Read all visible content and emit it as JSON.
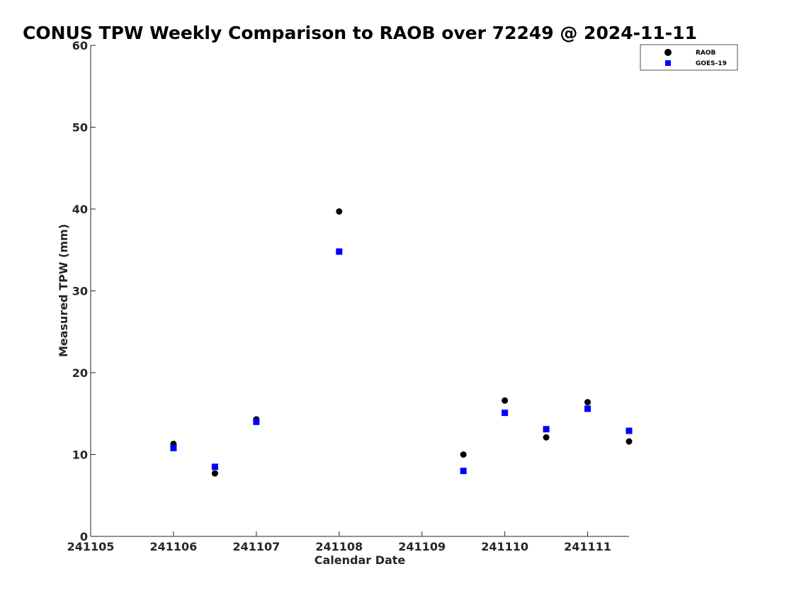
{
  "chart_data": {
    "type": "scatter",
    "title": "CONUS TPW Weekly Comparison to RAOB over 72249 @ 2024-11-11",
    "xlabel": "Calendar Date",
    "ylabel": "Measured TPW (mm)",
    "xlim": [
      0,
      6.5
    ],
    "ylim": [
      0,
      60
    ],
    "x_ticks": [
      0,
      1,
      2,
      3,
      4,
      5,
      6
    ],
    "x_tick_labels": [
      "241105",
      "241106",
      "241107",
      "241108",
      "241109",
      "241110",
      "241111"
    ],
    "y_ticks": [
      0,
      10,
      20,
      30,
      40,
      50,
      60
    ],
    "y_tick_labels": [
      "0",
      "10",
      "20",
      "30",
      "40",
      "50",
      "60"
    ],
    "grid": false,
    "legend_position": "top-right",
    "series": [
      {
        "name": "RAOB",
        "marker": "circle",
        "color": "#000000",
        "x": [
          1.0,
          1.5,
          2.0,
          3.0,
          4.5,
          5.0,
          5.5,
          6.0,
          6.5
        ],
        "y": [
          11.3,
          7.7,
          14.3,
          39.7,
          10.0,
          16.6,
          12.1,
          16.4,
          11.6
        ]
      },
      {
        "name": "GOES-19",
        "marker": "square",
        "color": "#0000ff",
        "x": [
          1.0,
          1.5,
          2.0,
          3.0,
          4.5,
          5.0,
          5.5,
          6.0,
          6.5
        ],
        "y": [
          10.8,
          8.5,
          14.0,
          34.8,
          8.0,
          15.1,
          13.1,
          15.6,
          12.9
        ]
      }
    ]
  }
}
